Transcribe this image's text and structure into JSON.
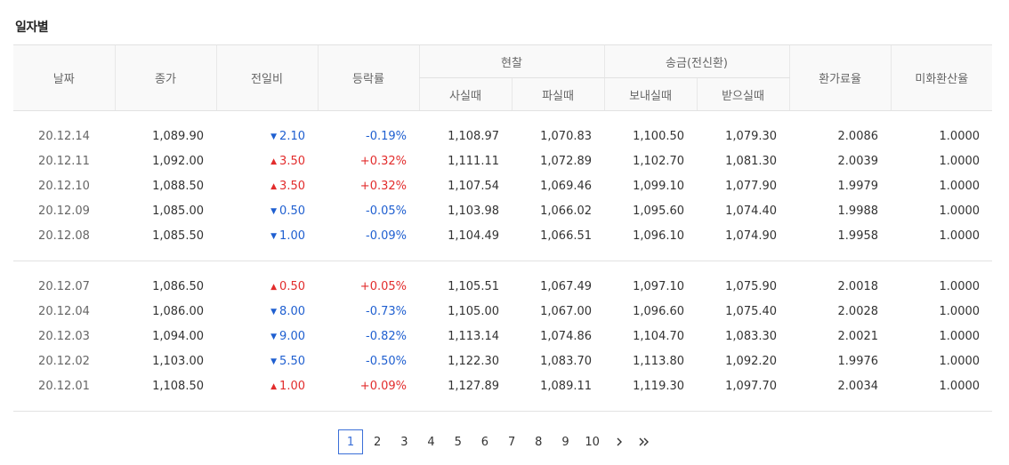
{
  "section_title": "일자별",
  "headers": {
    "date": "날짜",
    "close": "종가",
    "change": "전일비",
    "rate": "등락률",
    "cash": "현찰",
    "cash_buy": "사실때",
    "cash_sell": "파실때",
    "wire": "송금(전신환)",
    "wire_send": "보내실때",
    "wire_receive": "받으실때",
    "fee_rate": "환가료율",
    "usd_rate": "미화환산율"
  },
  "rows": [
    {
      "date": "20.12.14",
      "close": "1,089.90",
      "dir": "down",
      "arrow": "▼",
      "change": "2.10",
      "rate": "-0.19%",
      "cash_buy": "1,108.97",
      "cash_sell": "1,070.83",
      "wire_send": "1,100.50",
      "wire_receive": "1,079.30",
      "fee": "2.0086",
      "usd": "1.0000"
    },
    {
      "date": "20.12.11",
      "close": "1,092.00",
      "dir": "up",
      "arrow": "▲",
      "change": "3.50",
      "rate": "+0.32%",
      "cash_buy": "1,111.11",
      "cash_sell": "1,072.89",
      "wire_send": "1,102.70",
      "wire_receive": "1,081.30",
      "fee": "2.0039",
      "usd": "1.0000"
    },
    {
      "date": "20.12.10",
      "close": "1,088.50",
      "dir": "up",
      "arrow": "▲",
      "change": "3.50",
      "rate": "+0.32%",
      "cash_buy": "1,107.54",
      "cash_sell": "1,069.46",
      "wire_send": "1,099.10",
      "wire_receive": "1,077.90",
      "fee": "1.9979",
      "usd": "1.0000"
    },
    {
      "date": "20.12.09",
      "close": "1,085.00",
      "dir": "down",
      "arrow": "▼",
      "change": "0.50",
      "rate": "-0.05%",
      "cash_buy": "1,103.98",
      "cash_sell": "1,066.02",
      "wire_send": "1,095.60",
      "wire_receive": "1,074.40",
      "fee": "1.9988",
      "usd": "1.0000"
    },
    {
      "date": "20.12.08",
      "close": "1,085.50",
      "dir": "down",
      "arrow": "▼",
      "change": "1.00",
      "rate": "-0.09%",
      "cash_buy": "1,104.49",
      "cash_sell": "1,066.51",
      "wire_send": "1,096.10",
      "wire_receive": "1,074.90",
      "fee": "1.9958",
      "usd": "1.0000"
    },
    {
      "date": "20.12.07",
      "close": "1,086.50",
      "dir": "up",
      "arrow": "▲",
      "change": "0.50",
      "rate": "+0.05%",
      "cash_buy": "1,105.51",
      "cash_sell": "1,067.49",
      "wire_send": "1,097.10",
      "wire_receive": "1,075.90",
      "fee": "2.0018",
      "usd": "1.0000"
    },
    {
      "date": "20.12.04",
      "close": "1,086.00",
      "dir": "down",
      "arrow": "▼",
      "change": "8.00",
      "rate": "-0.73%",
      "cash_buy": "1,105.00",
      "cash_sell": "1,067.00",
      "wire_send": "1,096.60",
      "wire_receive": "1,075.40",
      "fee": "2.0028",
      "usd": "1.0000"
    },
    {
      "date": "20.12.03",
      "close": "1,094.00",
      "dir": "down",
      "arrow": "▼",
      "change": "9.00",
      "rate": "-0.82%",
      "cash_buy": "1,113.14",
      "cash_sell": "1,074.86",
      "wire_send": "1,104.70",
      "wire_receive": "1,083.30",
      "fee": "2.0021",
      "usd": "1.0000"
    },
    {
      "date": "20.12.02",
      "close": "1,103.00",
      "dir": "down",
      "arrow": "▼",
      "change": "5.50",
      "rate": "-0.50%",
      "cash_buy": "1,122.30",
      "cash_sell": "1,083.70",
      "wire_send": "1,113.80",
      "wire_receive": "1,092.20",
      "fee": "1.9976",
      "usd": "1.0000"
    },
    {
      "date": "20.12.01",
      "close": "1,108.50",
      "dir": "up",
      "arrow": "▲",
      "change": "1.00",
      "rate": "+0.09%",
      "cash_buy": "1,127.89",
      "cash_sell": "1,089.11",
      "wire_send": "1,119.30",
      "wire_receive": "1,097.70",
      "fee": "2.0034",
      "usd": "1.0000"
    }
  ],
  "colors": {
    "up": "#e22c2c",
    "down": "#1f5fd0",
    "active_page": "#3a6fd8"
  },
  "pagination": {
    "pages": [
      "1",
      "2",
      "3",
      "4",
      "5",
      "6",
      "7",
      "8",
      "9",
      "10"
    ],
    "current": "1",
    "next_icon": "chevron-right-icon",
    "last_icon": "double-chevron-right-icon"
  }
}
